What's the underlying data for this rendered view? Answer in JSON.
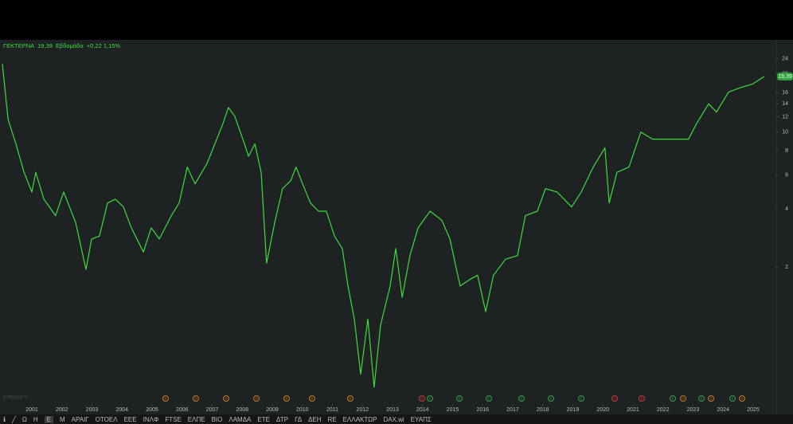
{
  "chart_data": {
    "type": "line",
    "header": {
      "symbol": "ΓΕΚΤΕΡΝΑ",
      "price": "19,39",
      "interval": "Εβδομάδα",
      "change": "+0,22 1,15%"
    },
    "watermark": "ETRADE™",
    "x": [
      2000.02,
      2000.21,
      2000.47,
      2000.74,
      2001.0,
      2001.13,
      2001.4,
      2001.79,
      2002.06,
      2002.46,
      2002.8,
      2002.99,
      2003.25,
      2003.52,
      2003.78,
      2004.05,
      2004.31,
      2004.71,
      2004.97,
      2005.24,
      2005.64,
      2005.9,
      2006.17,
      2006.43,
      2006.83,
      2007.09,
      2007.36,
      2007.54,
      2007.75,
      2008.02,
      2008.21,
      2008.42,
      2008.63,
      2008.81,
      2009.08,
      2009.34,
      2009.61,
      2009.79,
      2010.01,
      2010.27,
      2010.54,
      2010.8,
      2011.07,
      2011.33,
      2011.52,
      2011.73,
      2011.94,
      2012.18,
      2012.39,
      2012.6,
      2012.92,
      2013.11,
      2013.32,
      2013.58,
      2013.85,
      2014.25,
      2014.64,
      2014.91,
      2015.25,
      2015.57,
      2015.83,
      2016.1,
      2016.36,
      2016.76,
      2017.16,
      2017.42,
      2017.82,
      2018.09,
      2018.48,
      2018.96,
      2019.28,
      2019.68,
      2020.07,
      2020.21,
      2020.47,
      2020.87,
      2021.26,
      2021.66,
      2022.06,
      2022.46,
      2022.85,
      2023.12,
      2023.52,
      2023.78,
      2024.18,
      2024.58,
      2024.97,
      2025.37
    ],
    "series": [
      {
        "name": "ΓΕΚΤΕΡΝΑ",
        "color": "#3ddc3d",
        "values": [
          22.5,
          11.6,
          8.7,
          6.2,
          4.9,
          6.2,
          4.5,
          3.7,
          4.9,
          3.4,
          1.95,
          2.8,
          2.9,
          4.3,
          4.5,
          4.1,
          3.2,
          2.4,
          3.2,
          2.8,
          3.7,
          4.3,
          6.6,
          5.4,
          6.9,
          8.7,
          11.1,
          13.4,
          12.1,
          9.2,
          7.5,
          8.7,
          6.2,
          2.1,
          3.4,
          5.1,
          5.6,
          6.6,
          5.4,
          4.3,
          3.9,
          3.9,
          2.9,
          2.5,
          1.6,
          1.08,
          0.56,
          1.08,
          0.48,
          1.0,
          1.6,
          2.5,
          1.4,
          2.3,
          3.2,
          3.9,
          3.5,
          2.8,
          1.6,
          1.73,
          1.82,
          1.18,
          1.82,
          2.2,
          2.3,
          3.7,
          3.9,
          5.1,
          4.9,
          4.1,
          4.9,
          6.6,
          8.3,
          4.3,
          6.2,
          6.6,
          10.0,
          9.2,
          9.2,
          9.2,
          9.2,
          11.1,
          14.0,
          12.7,
          16.1,
          17.0,
          17.7,
          19.39
        ]
      }
    ],
    "xlim": [
      1999.94,
      2025.77
    ],
    "xticks": [
      2001,
      2002,
      2003,
      2004,
      2005,
      2006,
      2007,
      2008,
      2009,
      2010,
      2011,
      2012,
      2013,
      2014,
      2015,
      2016,
      2017,
      2018,
      2019,
      2020,
      2021,
      2022,
      2023,
      2024,
      2025
    ],
    "ylim": [
      0.4,
      30
    ],
    "yticks": [
      2,
      4,
      6,
      8,
      10,
      12,
      14,
      16,
      20,
      24
    ],
    "log_scale": true,
    "grid": false,
    "event_markers": [
      {
        "label": "D",
        "color": "#c8782a"
      },
      {
        "label": "D",
        "color": "#c8782a"
      },
      {
        "label": "D",
        "color": "#c8782a"
      },
      {
        "label": "D",
        "color": "#c8782a"
      },
      {
        "label": "D",
        "color": "#c8782a"
      },
      {
        "label": "D",
        "color": "#c8782a"
      },
      {
        "label": "D",
        "color": "#c8782a"
      },
      {
        "label": "E",
        "color": "#c23a3a"
      },
      {
        "label": "E",
        "color": "#3a9a4a"
      },
      {
        "label": "E",
        "color": "#3a9a4a"
      },
      {
        "label": "E",
        "color": "#3a9a4a"
      },
      {
        "label": "E",
        "color": "#3a9a4a"
      },
      {
        "label": "E",
        "color": "#3a9a4a"
      },
      {
        "label": "E",
        "color": "#3a9a4a"
      },
      {
        "label": "E",
        "color": "#c23a3a"
      },
      {
        "label": "E",
        "color": "#c23a3a"
      },
      {
        "label": "E",
        "color": "#3a9a4a"
      },
      {
        "label": "D",
        "color": "#c8782a"
      },
      {
        "label": "E",
        "color": "#3a9a4a"
      },
      {
        "label": "D",
        "color": "#c8782a"
      },
      {
        "label": "E",
        "color": "#3a9a4a"
      },
      {
        "label": "D",
        "color": "#c8782a"
      }
    ]
  },
  "toolbar": [
    "Ω",
    "H",
    "E",
    "M",
    "ΑΡΑΙΓ",
    "ΟΤΟΕΛ",
    "ΕΕΕ",
    "ΙΝΛΦ",
    "FTSE",
    "ΕΛΠΕ",
    "ΒΙΟ",
    "ΛΑΜΔΑ",
    "ΕΤΕ",
    "ΔΤΡ",
    "ΓΔ",
    "ΔΕΗ",
    "RE",
    "ΕΛΛΑΚΤΩΡ",
    "DAX.wi",
    "ΕΥΑΠΣ"
  ]
}
